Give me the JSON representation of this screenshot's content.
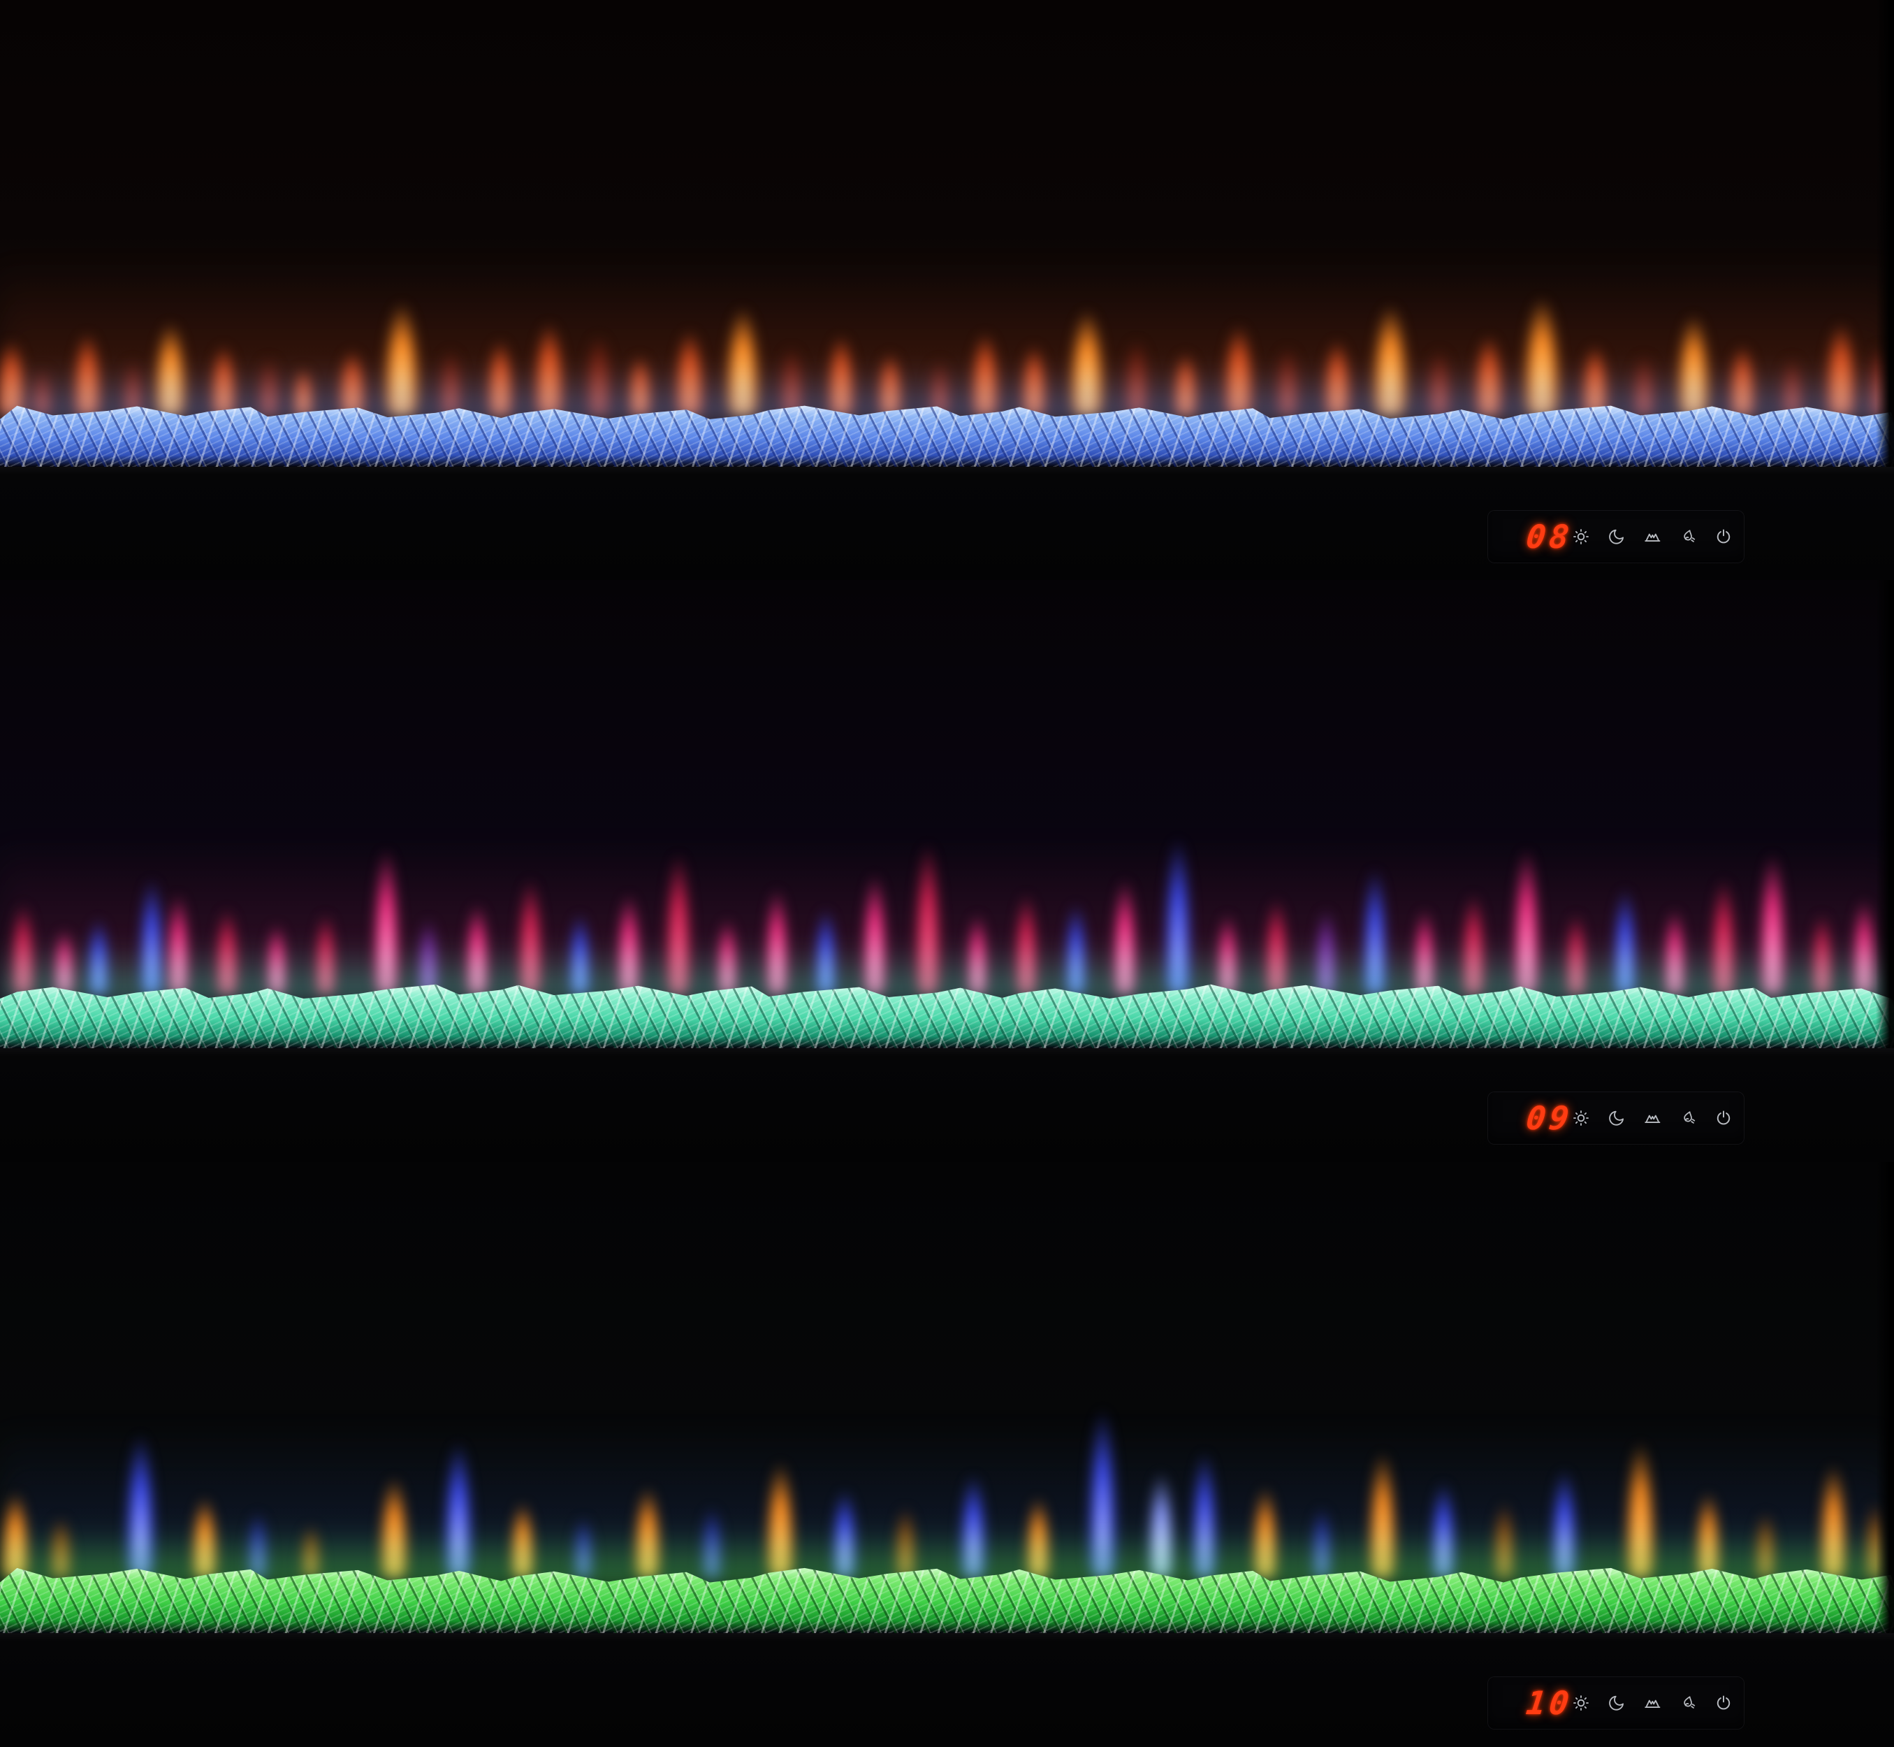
{
  "scene": {
    "description": "Three stacked linear electric fireplaces demonstrating flame-color settings",
    "background_color": "#000000"
  },
  "controls": {
    "display_color": "#ff3c12",
    "icon_color": "#c9ccd2",
    "buttons": [
      {
        "name": "brightness-icon"
      },
      {
        "name": "sleep-timer-icon"
      },
      {
        "name": "flame-effect-icon"
      },
      {
        "name": "flame-color-icon"
      },
      {
        "name": "power-icon"
      }
    ]
  },
  "fireplaces": [
    {
      "name": "fireplace-top",
      "control": {
        "display": "08"
      },
      "crystal": {
        "highlight": "#e9f3ff",
        "base": "#8fb6f5",
        "mid": "#5c86e8",
        "deep": "#3050b8",
        "facet_shadow": "rgba(20,38,120,0.5)"
      },
      "glow": "rgba(120,160,255,0.5)",
      "haze": "rgba(150,52,20,0.5)",
      "flame_palette": {
        "a": {
          "name": "amber",
          "core": "#ffe296",
          "mid": "#ff8c24"
        },
        "b": {
          "name": "orange-red",
          "core": "#ff9a4d",
          "mid": "#e0511f"
        },
        "c": {
          "name": "ember-red",
          "core": "#c8502e",
          "mid": "#7c2413"
        }
      },
      "flames": [
        [
          0.6,
          64,
          150,
          "b"
        ],
        [
          2.2,
          50,
          95,
          "c"
        ],
        [
          4.6,
          62,
          165,
          "b"
        ],
        [
          7.0,
          48,
          110,
          "c"
        ],
        [
          9.0,
          70,
          185,
          "a"
        ],
        [
          11.8,
          56,
          140,
          "b"
        ],
        [
          14.2,
          52,
          115,
          "c"
        ],
        [
          16.0,
          46,
          95,
          "b"
        ],
        [
          18.6,
          60,
          130,
          "b"
        ],
        [
          21.2,
          78,
          225,
          "a"
        ],
        [
          23.8,
          54,
          130,
          "c"
        ],
        [
          26.4,
          58,
          150,
          "b"
        ],
        [
          29.0,
          66,
          185,
          "b"
        ],
        [
          31.6,
          60,
          160,
          "c"
        ],
        [
          33.8,
          52,
          120,
          "b"
        ],
        [
          36.4,
          64,
          170,
          "b"
        ],
        [
          39.2,
          74,
          215,
          "a"
        ],
        [
          41.8,
          56,
          135,
          "c"
        ],
        [
          44.4,
          60,
          160,
          "b"
        ],
        [
          47.0,
          54,
          125,
          "b"
        ],
        [
          49.6,
          50,
          110,
          "c"
        ],
        [
          52.0,
          62,
          165,
          "b"
        ],
        [
          54.6,
          56,
          140,
          "b"
        ],
        [
          57.4,
          76,
          210,
          "a"
        ],
        [
          60.0,
          58,
          150,
          "c"
        ],
        [
          62.6,
          54,
          125,
          "b"
        ],
        [
          65.4,
          66,
          180,
          "b"
        ],
        [
          68.0,
          56,
          135,
          "c"
        ],
        [
          70.6,
          60,
          150,
          "b"
        ],
        [
          73.4,
          78,
          220,
          "a"
        ],
        [
          76.0,
          56,
          130,
          "c"
        ],
        [
          78.6,
          62,
          160,
          "b"
        ],
        [
          81.4,
          80,
          235,
          "a"
        ],
        [
          84.2,
          58,
          140,
          "b"
        ],
        [
          86.8,
          54,
          120,
          "c"
        ],
        [
          89.4,
          72,
          200,
          "a"
        ],
        [
          92.0,
          58,
          140,
          "b"
        ],
        [
          94.6,
          52,
          115,
          "c"
        ],
        [
          97.2,
          68,
          185,
          "b"
        ],
        [
          99.2,
          50,
          140,
          "c"
        ]
      ]
    },
    {
      "name": "fireplace-middle",
      "control": {
        "display": "09"
      },
      "crystal": {
        "highlight": "#f2fff9",
        "base": "#8df0cf",
        "mid": "#49d6a8",
        "deep": "#17926e",
        "facet_shadow": "rgba(8,70,52,0.5)"
      },
      "glow": "rgba(96,240,200,0.5)",
      "haze": "rgba(150,30,90,0.42)",
      "flame_palette": {
        "a": {
          "name": "magenta",
          "core": "#ffc6ea",
          "mid": "#ff2f86"
        },
        "b": {
          "name": "crimson",
          "core": "#ff7aa6",
          "mid": "#dd2154"
        },
        "c": {
          "name": "blue",
          "core": "#b0bcff",
          "mid": "#3b4af0"
        },
        "d": {
          "name": "violet",
          "core": "#c07ae8",
          "mid": "#7a2ea8"
        }
      },
      "flames": [
        [
          1.2,
          50,
          180,
          "b"
        ],
        [
          3.4,
          44,
          130,
          "a"
        ],
        [
          5.2,
          46,
          150,
          "c"
        ],
        [
          8.0,
          52,
          230,
          "c"
        ],
        [
          9.4,
          48,
          200,
          "a"
        ],
        [
          12.0,
          50,
          170,
          "b"
        ],
        [
          14.6,
          44,
          140,
          "a"
        ],
        [
          17.2,
          46,
          160,
          "b"
        ],
        [
          20.4,
          56,
          290,
          "a"
        ],
        [
          22.6,
          44,
          150,
          "d"
        ],
        [
          25.2,
          50,
          180,
          "a"
        ],
        [
          28.0,
          52,
          230,
          "b"
        ],
        [
          30.6,
          46,
          160,
          "c"
        ],
        [
          33.2,
          50,
          200,
          "a"
        ],
        [
          35.8,
          56,
          280,
          "b"
        ],
        [
          38.4,
          44,
          150,
          "a"
        ],
        [
          41.0,
          50,
          210,
          "a"
        ],
        [
          43.6,
          46,
          170,
          "c"
        ],
        [
          46.2,
          52,
          240,
          "a"
        ],
        [
          49.0,
          56,
          300,
          "b"
        ],
        [
          51.6,
          44,
          160,
          "a"
        ],
        [
          54.2,
          50,
          200,
          "b"
        ],
        [
          56.8,
          46,
          180,
          "c"
        ],
        [
          59.4,
          52,
          230,
          "a"
        ],
        [
          62.2,
          58,
          310,
          "c"
        ],
        [
          64.8,
          44,
          160,
          "a"
        ],
        [
          67.4,
          50,
          190,
          "b"
        ],
        [
          70.0,
          46,
          170,
          "d"
        ],
        [
          72.6,
          52,
          250,
          "c"
        ],
        [
          75.2,
          44,
          170,
          "a"
        ],
        [
          77.8,
          50,
          200,
          "b"
        ],
        [
          80.6,
          56,
          290,
          "a"
        ],
        [
          83.2,
          44,
          160,
          "b"
        ],
        [
          85.8,
          50,
          210,
          "c"
        ],
        [
          88.4,
          46,
          170,
          "a"
        ],
        [
          91.0,
          52,
          230,
          "b"
        ],
        [
          93.6,
          56,
          280,
          "a"
        ],
        [
          96.2,
          44,
          160,
          "b"
        ],
        [
          98.4,
          48,
          190,
          "a"
        ]
      ]
    },
    {
      "name": "fireplace-bottom",
      "control": {
        "display": "10"
      },
      "crystal": {
        "highlight": "#e4ffdc",
        "base": "#7deb72",
        "mid": "#3ecf46",
        "deep": "#15942a",
        "facet_shadow": "rgba(6,60,14,0.55)"
      },
      "glow": "rgba(90,235,110,0.55)",
      "haze": "rgba(45,65,200,0.3)",
      "flame_palette": {
        "a": {
          "name": "blue",
          "core": "#c6ceff",
          "mid": "#3d4cf2"
        },
        "b": {
          "name": "orange",
          "core": "#ffd47d",
          "mid": "#ff8d1e"
        },
        "c": {
          "name": "dim-blue",
          "core": "#7583e8",
          "mid": "#2834ab"
        },
        "d": {
          "name": "dim-orange",
          "core": "#e09440",
          "mid": "#8f4d12"
        },
        "e": {
          "name": "white-blue",
          "core": "#f0f4ff",
          "mid": "#8899ff"
        }
      },
      "flames": [
        [
          0.8,
          60,
          170,
          "b"
        ],
        [
          3.2,
          50,
          120,
          "d"
        ],
        [
          7.4,
          64,
          285,
          "a"
        ],
        [
          10.8,
          56,
          160,
          "b"
        ],
        [
          13.6,
          48,
          130,
          "c"
        ],
        [
          16.4,
          44,
          105,
          "d"
        ],
        [
          20.8,
          62,
          200,
          "b"
        ],
        [
          24.2,
          62,
          270,
          "a"
        ],
        [
          27.6,
          52,
          150,
          "b"
        ],
        [
          30.8,
          46,
          120,
          "c"
        ],
        [
          34.2,
          58,
          180,
          "b"
        ],
        [
          37.6,
          48,
          140,
          "c"
        ],
        [
          41.2,
          62,
          230,
          "b"
        ],
        [
          44.6,
          54,
          175,
          "a"
        ],
        [
          47.8,
          48,
          140,
          "d"
        ],
        [
          51.4,
          58,
          205,
          "a"
        ],
        [
          54.8,
          52,
          160,
          "b"
        ],
        [
          58.2,
          62,
          335,
          "a"
        ],
        [
          61.3,
          56,
          210,
          "e"
        ],
        [
          63.6,
          54,
          250,
          "a"
        ],
        [
          66.8,
          54,
          180,
          "b"
        ],
        [
          69.8,
          46,
          140,
          "c"
        ],
        [
          73.0,
          60,
          250,
          "b"
        ],
        [
          76.2,
          54,
          190,
          "a"
        ],
        [
          79.4,
          48,
          150,
          "d"
        ],
        [
          82.6,
          56,
          215,
          "a"
        ],
        [
          86.6,
          64,
          270,
          "b"
        ],
        [
          90.2,
          52,
          170,
          "b"
        ],
        [
          93.2,
          46,
          130,
          "d"
        ],
        [
          96.8,
          58,
          225,
          "b"
        ],
        [
          99.0,
          46,
          150,
          "d"
        ]
      ]
    }
  ]
}
